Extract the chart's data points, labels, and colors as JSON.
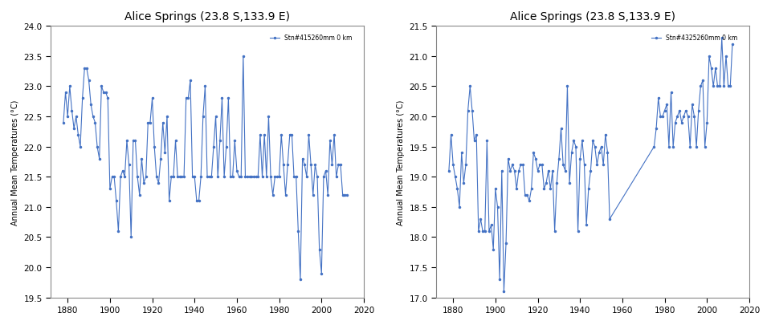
{
  "title": "Alice Springs (23.8 S,133.9 E)",
  "ylabel": "Annual Mean Temperatures (°C)",
  "background_color": "#ffffff",
  "line_color": "#4472C4",
  "marker_color": "#4472C4",
  "legend_label_left": "Stn#415260mm 0 km",
  "legend_label_right": "Stn#4325260mm 0 km",
  "xlim": [
    1872,
    2020
  ],
  "xticks": [
    1880,
    1900,
    1920,
    1940,
    1960,
    1980,
    2000,
    2020
  ],
  "left_ylim": [
    19.5,
    24.0
  ],
  "left_yticks": [
    19.5,
    20.0,
    20.5,
    21.0,
    21.5,
    22.0,
    22.5,
    23.0,
    23.5,
    24.0
  ],
  "right_ylim": [
    17.0,
    21.5
  ],
  "right_yticks": [
    17.0,
    17.5,
    18.0,
    18.5,
    19.0,
    19.5,
    20.0,
    20.5,
    21.0,
    21.5
  ],
  "left_data": {
    "years": [
      1878,
      1879,
      1880,
      1881,
      1882,
      1883,
      1884,
      1885,
      1886,
      1887,
      1888,
      1889,
      1890,
      1891,
      1892,
      1893,
      1894,
      1895,
      1896,
      1897,
      1898,
      1899,
      1900,
      1901,
      1902,
      1903,
      1904,
      1905,
      1906,
      1907,
      1908,
      1909,
      1910,
      1911,
      1912,
      1913,
      1914,
      1915,
      1916,
      1917,
      1918,
      1919,
      1920,
      1921,
      1922,
      1923,
      1924,
      1925,
      1926,
      1927,
      1928,
      1929,
      1930,
      1931,
      1932,
      1933,
      1934,
      1935,
      1936,
      1937,
      1938,
      1939,
      1940,
      1941,
      1942,
      1943,
      1944,
      1945,
      1946,
      1947,
      1948,
      1949,
      1950,
      1951,
      1952,
      1953,
      1954,
      1955,
      1956,
      1957,
      1958,
      1959,
      1960,
      1961,
      1962,
      1963,
      1964,
      1965,
      1966,
      1967,
      1968,
      1969,
      1970,
      1971,
      1972,
      1973,
      1974,
      1975,
      1976,
      1977,
      1978,
      1979,
      1980,
      1981,
      1982,
      1983,
      1984,
      1985,
      1986,
      1987,
      1988,
      1989,
      1990,
      1991,
      1992,
      1993,
      1994,
      1995,
      1996,
      1997,
      1998,
      1999,
      2000,
      2001,
      2002,
      2003,
      2004,
      2005,
      2006,
      2007,
      2008,
      2009,
      2010,
      2011,
      2012
    ],
    "values": [
      22.4,
      22.9,
      22.5,
      23.0,
      22.6,
      22.3,
      22.5,
      22.2,
      22.0,
      22.8,
      23.3,
      23.3,
      23.1,
      22.7,
      22.5,
      22.4,
      22.0,
      21.8,
      23.0,
      22.9,
      22.9,
      22.8,
      21.3,
      21.5,
      21.5,
      21.1,
      20.6,
      21.5,
      21.6,
      21.5,
      22.1,
      21.7,
      20.5,
      22.1,
      22.1,
      21.5,
      21.2,
      21.8,
      21.4,
      21.5,
      22.4,
      22.4,
      22.8,
      22.0,
      21.5,
      21.4,
      21.8,
      22.4,
      21.9,
      22.5,
      21.1,
      21.5,
      21.5,
      22.1,
      21.5,
      21.5,
      21.5,
      21.5,
      22.8,
      22.8,
      23.1,
      21.5,
      21.5,
      21.1,
      21.1,
      21.5,
      22.5,
      23.0,
      21.5,
      21.5,
      21.5,
      22.0,
      22.5,
      21.5,
      22.1,
      22.8,
      21.5,
      22.0,
      22.8,
      21.5,
      21.5,
      22.1,
      21.6,
      21.5,
      21.5,
      23.5,
      21.5,
      21.5,
      21.5,
      21.5,
      21.5,
      21.5,
      21.5,
      22.2,
      21.5,
      22.2,
      21.5,
      22.5,
      21.5,
      21.2,
      21.5,
      21.5,
      21.5,
      22.2,
      21.7,
      21.2,
      21.7,
      22.2,
      22.2,
      21.5,
      21.5,
      20.6,
      19.8,
      21.8,
      21.7,
      21.5,
      22.2,
      21.7,
      21.2,
      21.7,
      21.5,
      20.3,
      19.9,
      21.5,
      21.6,
      21.2,
      22.1,
      21.7,
      22.2,
      21.5,
      21.7,
      21.7,
      21.2,
      21.2,
      21.2
    ]
  },
  "right_data": {
    "years": [
      1878,
      1879,
      1880,
      1881,
      1882,
      1883,
      1884,
      1885,
      1886,
      1887,
      1888,
      1889,
      1890,
      1891,
      1892,
      1893,
      1894,
      1895,
      1896,
      1897,
      1898,
      1899,
      1900,
      1901,
      1902,
      1903,
      1904,
      1905,
      1906,
      1907,
      1908,
      1909,
      1910,
      1911,
      1912,
      1913,
      1914,
      1915,
      1916,
      1917,
      1918,
      1919,
      1920,
      1921,
      1922,
      1923,
      1924,
      1925,
      1926,
      1927,
      1928,
      1929,
      1930,
      1931,
      1932,
      1933,
      1934,
      1935,
      1936,
      1937,
      1938,
      1939,
      1940,
      1941,
      1942,
      1943,
      1944,
      1945,
      1946,
      1947,
      1948,
      1949,
      1950,
      1951,
      1952,
      1953,
      1954,
      1975,
      1976,
      1977,
      1978,
      1979,
      1980,
      1981,
      1982,
      1983,
      1984,
      1985,
      1986,
      1987,
      1988,
      1989,
      1990,
      1991,
      1992,
      1993,
      1994,
      1995,
      1996,
      1997,
      1998,
      1999,
      2000,
      2001,
      2002,
      2003,
      2004,
      2005,
      2006,
      2007,
      2008,
      2009,
      2010,
      2011,
      2012
    ],
    "values": [
      19.1,
      19.7,
      19.2,
      19.0,
      18.8,
      18.5,
      19.4,
      18.9,
      19.2,
      20.1,
      20.5,
      20.1,
      19.6,
      19.7,
      18.1,
      18.3,
      18.1,
      18.1,
      19.6,
      18.1,
      18.2,
      17.8,
      18.8,
      18.5,
      17.3,
      19.1,
      17.1,
      17.9,
      19.3,
      19.1,
      19.2,
      19.1,
      18.8,
      19.1,
      19.2,
      19.2,
      18.7,
      18.7,
      18.6,
      18.8,
      19.4,
      19.3,
      19.1,
      19.2,
      19.2,
      18.8,
      18.9,
      19.1,
      18.8,
      19.1,
      18.1,
      18.9,
      19.3,
      19.8,
      19.2,
      19.1,
      20.5,
      18.9,
      19.4,
      19.6,
      19.5,
      18.1,
      19.3,
      19.6,
      19.2,
      18.2,
      18.8,
      19.1,
      19.6,
      19.5,
      19.2,
      19.4,
      19.5,
      19.2,
      19.7,
      19.4,
      18.3,
      19.5,
      19.8,
      20.3,
      20.0,
      20.0,
      20.1,
      20.2,
      19.5,
      20.4,
      19.5,
      19.9,
      20.0,
      20.1,
      19.9,
      20.0,
      20.1,
      20.0,
      19.5,
      20.2,
      20.0,
      19.5,
      20.1,
      20.5,
      20.6,
      19.5,
      19.9,
      21.0,
      20.8,
      20.5,
      20.8,
      20.5,
      20.5,
      21.3,
      20.5,
      21.0,
      20.5,
      20.5,
      21.2
    ]
  }
}
